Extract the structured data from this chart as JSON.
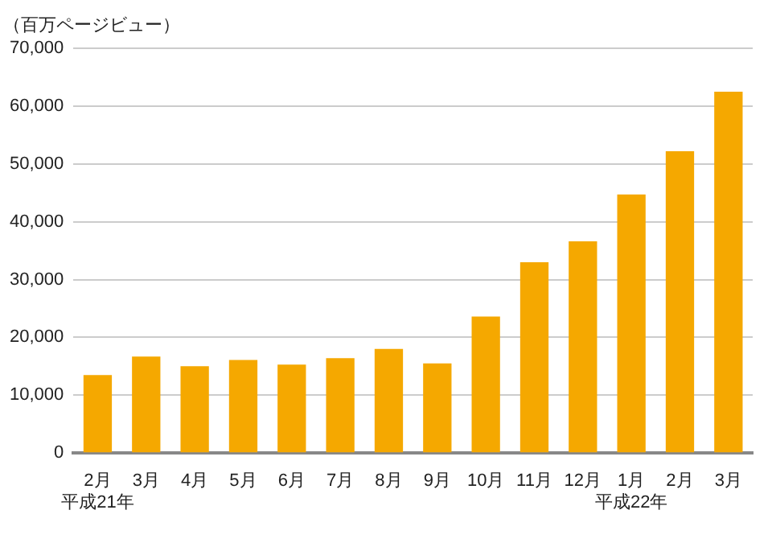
{
  "chart_data": {
    "type": "bar",
    "ylabel": "（百万ページビュー）",
    "categories": [
      "2月平成21年",
      "3月",
      "4月",
      "5月",
      "6月",
      "7月",
      "8月",
      "9月",
      "10月",
      "11月",
      "12月",
      "1月平成22年",
      "2月",
      "3月"
    ],
    "values": [
      13500,
      16700,
      15000,
      16100,
      15300,
      16400,
      18000,
      15500,
      23600,
      33000,
      36600,
      44700,
      52200,
      62500
    ],
    "color": "#f5a800",
    "ylim": [
      0,
      70000
    ],
    "yticks": [
      0,
      {
        "value": 10000,
        "label": "10,000"
      },
      {
        "value": 20000,
        "label": "20,000"
      },
      {
        "value": 30000,
        "label": "30,000"
      },
      {
        "value": 40000,
        "label": "40,000"
      },
      {
        "value": 50000,
        "label": "50,000"
      },
      {
        "value": 60000,
        "label": "60,000"
      },
      {
        "value": 70000,
        "label": "70,000"
      }
    ],
    "grid": "y",
    "legend": false
  }
}
